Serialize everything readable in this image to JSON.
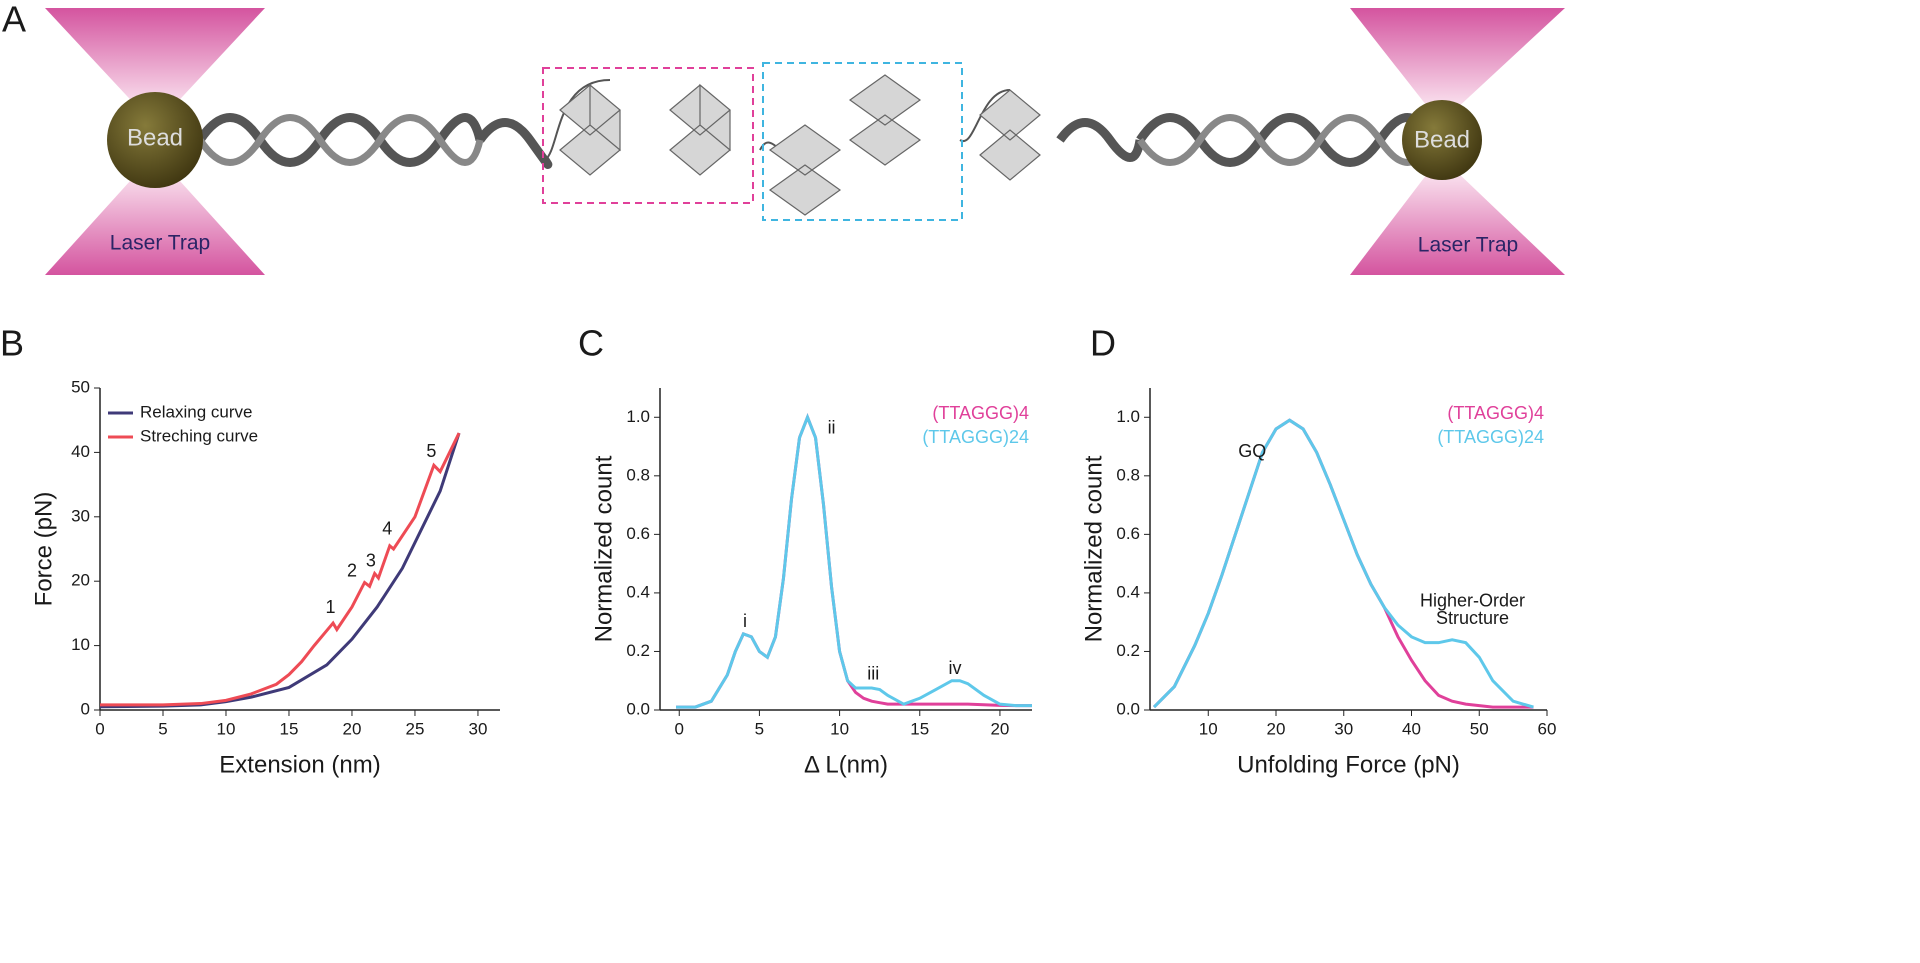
{
  "diagram": {
    "panel": "A",
    "left_bead": "Bead",
    "right_bead": "Bead",
    "left_trap": "Laser Trap",
    "right_trap": "Laser Trap"
  },
  "chart_data": [
    {
      "type": "line",
      "panel": "B",
      "x_label": "Extension (nm)",
      "y_label": "Force (pN)",
      "xlim": [
        0,
        31.75
      ],
      "ylim": [
        0,
        50
      ],
      "xticks": [
        0,
        5,
        10,
        15,
        20,
        25,
        30
      ],
      "yticks": [
        0,
        10,
        20,
        30,
        40,
        50
      ],
      "legend": "top-left",
      "series": [
        {
          "name": "Relaxing curve",
          "color": "#3f3a78",
          "x": [
            0,
            5,
            8,
            10,
            12,
            15,
            18,
            20,
            22,
            24,
            26,
            27,
            28,
            28.5
          ],
          "values": [
            0.5,
            0.6,
            0.8,
            1.3,
            2,
            3.5,
            7,
            11,
            16,
            22,
            30,
            34,
            40,
            43
          ]
        },
        {
          "name": "Streching curve",
          "color": "#ee4b55",
          "x": [
            0,
            5,
            8,
            10,
            12,
            14,
            15,
            16,
            17,
            18.5,
            18.8,
            20,
            21,
            21.4,
            21.8,
            22.1,
            23,
            23.3,
            25,
            26.5,
            27,
            28.5
          ],
          "values": [
            0.8,
            0.8,
            1,
            1.5,
            2.5,
            4,
            5.5,
            7.5,
            10,
            13.5,
            12.5,
            16,
            19.8,
            19.2,
            21.2,
            20.5,
            25.5,
            25,
            30,
            38,
            37,
            43
          ]
        }
      ],
      "annotations": [
        {
          "text": "1",
          "x": 18.3,
          "y": 15.8
        },
        {
          "text": "2",
          "x": 20,
          "y": 21.5
        },
        {
          "text": "3",
          "x": 21.5,
          "y": 23
        },
        {
          "text": "4",
          "x": 22.8,
          "y": 28
        },
        {
          "text": "5",
          "x": 26.3,
          "y": 40
        }
      ]
    },
    {
      "type": "line",
      "panel": "C",
      "x_label": "Δ L(nm)",
      "y_label": "Normalized count",
      "xlim": [
        -1.2,
        22
      ],
      "ylim": [
        0,
        1.1
      ],
      "xticks": [
        0,
        5,
        10,
        15,
        20
      ],
      "yticks": [
        {
          "value": 0,
          "label": "0.0"
        },
        0.2,
        0.4,
        0.6,
        0.8,
        {
          "value": 1,
          "label": "1.0"
        }
      ],
      "legend": "top-right",
      "series": [
        {
          "name": "(TTAGGG)4",
          "color": "#e0409a",
          "x": [
            -0.2,
            1,
            2,
            3,
            3.5,
            4,
            4.5,
            5,
            5.5,
            6,
            6.5,
            7,
            7.5,
            8,
            8.5,
            9,
            9.5,
            10,
            10.5,
            11,
            11.5,
            12,
            12.5,
            13,
            14,
            15,
            16,
            17,
            17.5,
            18,
            19,
            20,
            21,
            22
          ],
          "values": [
            0.01,
            0.01,
            0.03,
            0.12,
            0.2,
            0.26,
            0.25,
            0.2,
            0.18,
            0.25,
            0.45,
            0.72,
            0.93,
            1.0,
            0.93,
            0.7,
            0.42,
            0.2,
            0.1,
            0.06,
            0.04,
            0.03,
            0.025,
            0.02,
            0.02,
            0.02,
            0.02,
            0.02,
            0.02,
            0.02,
            0.018,
            0.016,
            0.015,
            0.015
          ]
        },
        {
          "name": "(TTAGGG)24",
          "color": "#5ec8ea",
          "x": [
            -0.2,
            1,
            2,
            3,
            3.5,
            4,
            4.5,
            5,
            5.5,
            6,
            6.5,
            7,
            7.5,
            8,
            8.5,
            9,
            9.5,
            10,
            10.5,
            11,
            11.5,
            12,
            12.5,
            13,
            14,
            15,
            16,
            17,
            17.5,
            18,
            19,
            20,
            21,
            22
          ],
          "values": [
            0.01,
            0.01,
            0.03,
            0.12,
            0.2,
            0.26,
            0.25,
            0.2,
            0.18,
            0.25,
            0.45,
            0.72,
            0.93,
            1.0,
            0.93,
            0.7,
            0.42,
            0.2,
            0.1,
            0.075,
            0.075,
            0.075,
            0.07,
            0.05,
            0.02,
            0.04,
            0.07,
            0.1,
            0.1,
            0.09,
            0.05,
            0.02,
            0.015,
            0.015
          ]
        }
      ],
      "annotations": [
        {
          "text": "i",
          "x": 4.1,
          "y": 0.3
        },
        {
          "text": "ii",
          "x": 9.5,
          "y": 0.96
        },
        {
          "text": "iii",
          "x": 12.1,
          "y": 0.12
        },
        {
          "text": "iv",
          "x": 17.2,
          "y": 0.14
        }
      ]
    },
    {
      "type": "line",
      "panel": "D",
      "x_label": "Unfolding Force (pN)",
      "y_label": "Normalized count",
      "xlim": [
        1.4,
        60
      ],
      "ylim": [
        0,
        1.1
      ],
      "xticks": [
        10,
        20,
        30,
        40,
        50,
        60
      ],
      "yticks": [
        {
          "value": 0,
          "label": "0.0"
        },
        0.2,
        0.4,
        0.6,
        0.8,
        {
          "value": 1,
          "label": "1.0"
        }
      ],
      "legend": "top-right",
      "series": [
        {
          "name": "(TTAGGG)4",
          "color": "#e0409a",
          "x": [
            2,
            5,
            8,
            10,
            12,
            15,
            18,
            20,
            22,
            24,
            26,
            28,
            30,
            32,
            34,
            36,
            38,
            40,
            42,
            44,
            46,
            48,
            50,
            52,
            55,
            58
          ],
          "values": [
            0.01,
            0.08,
            0.22,
            0.33,
            0.46,
            0.67,
            0.88,
            0.96,
            0.99,
            0.96,
            0.88,
            0.77,
            0.65,
            0.53,
            0.43,
            0.35,
            0.25,
            0.17,
            0.1,
            0.05,
            0.03,
            0.02,
            0.015,
            0.01,
            0.01,
            0.01
          ]
        },
        {
          "name": "(TTAGGG)24",
          "color": "#5ec8ea",
          "x": [
            2,
            5,
            8,
            10,
            12,
            15,
            18,
            20,
            22,
            24,
            26,
            28,
            30,
            32,
            34,
            36,
            38,
            40,
            42,
            44,
            46,
            48,
            50,
            52,
            55,
            58
          ],
          "values": [
            0.01,
            0.08,
            0.22,
            0.33,
            0.46,
            0.67,
            0.88,
            0.96,
            0.99,
            0.96,
            0.88,
            0.77,
            0.65,
            0.53,
            0.43,
            0.35,
            0.29,
            0.25,
            0.23,
            0.23,
            0.24,
            0.23,
            0.18,
            0.1,
            0.03,
            0.01
          ]
        }
      ],
      "annotations": [
        {
          "text": "GQ",
          "x": 16.5,
          "y": 0.88
        },
        {
          "text": "Higher-Order",
          "x": 49,
          "y": 0.37
        },
        {
          "text": "Structure",
          "x": 49,
          "y": 0.31
        }
      ]
    }
  ]
}
